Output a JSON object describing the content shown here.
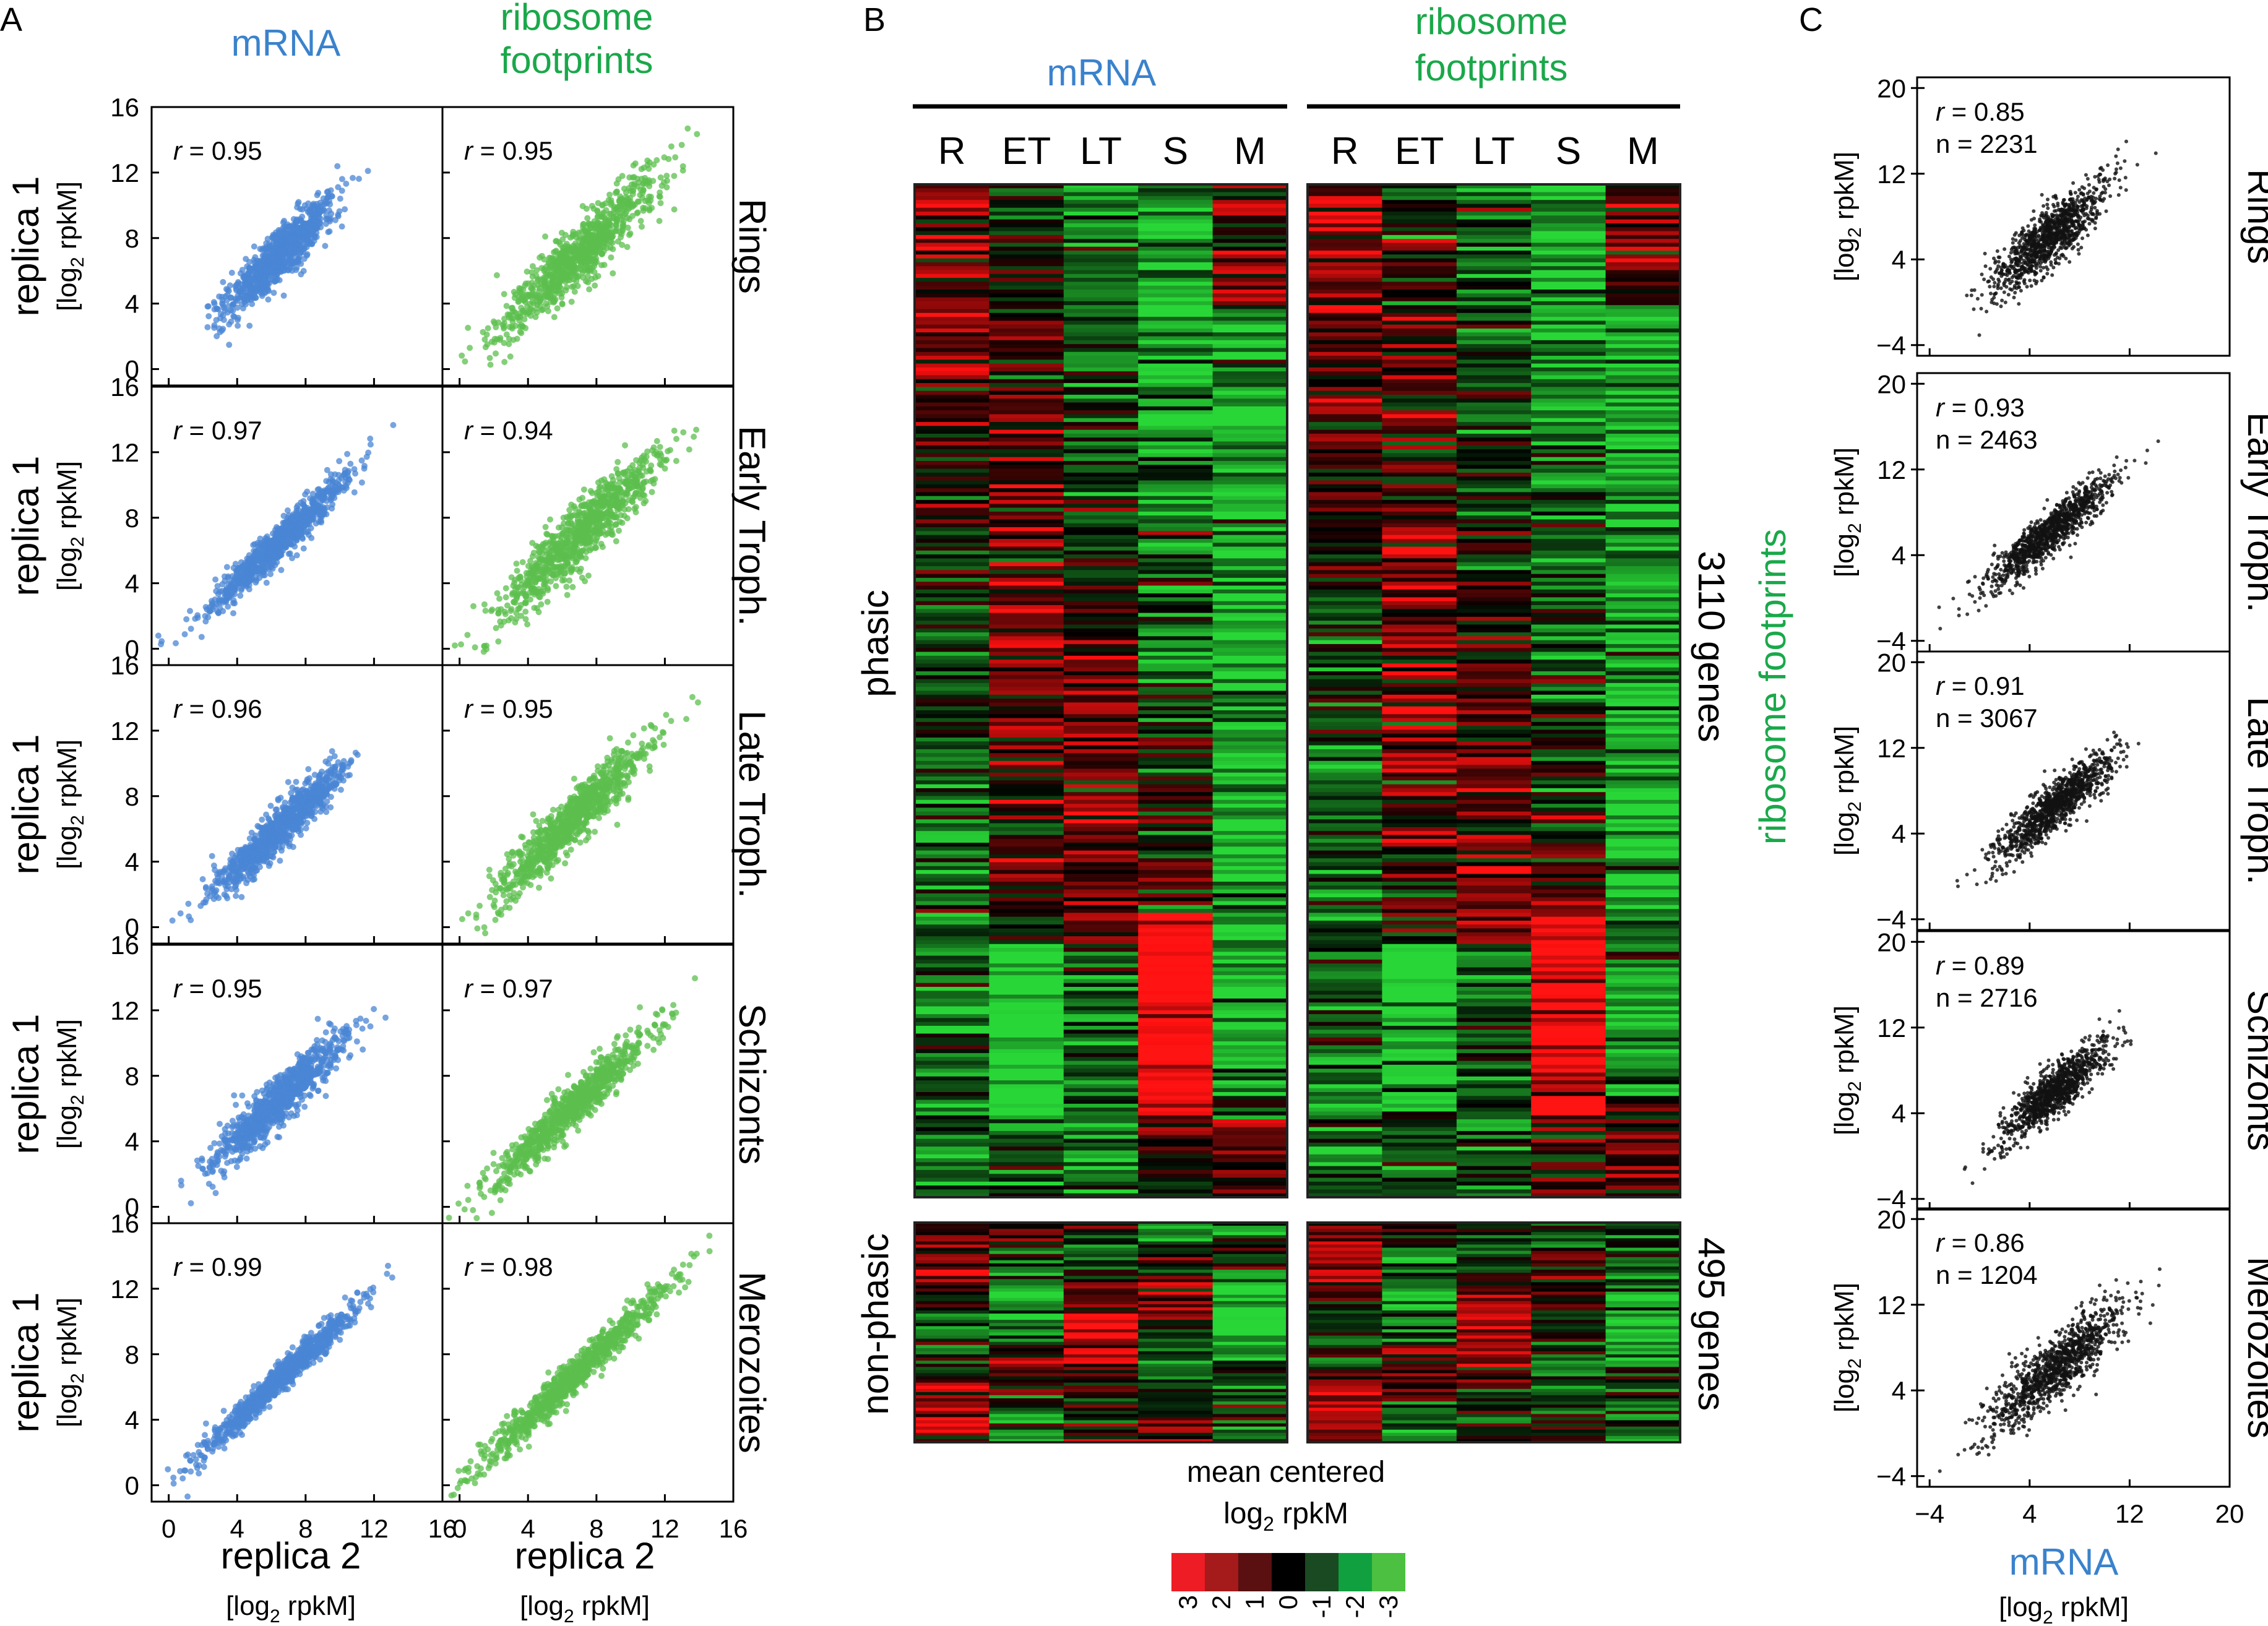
{
  "panel_labels": {
    "a": "A",
    "b": "B",
    "c": "C"
  },
  "colors": {
    "mrna_blue": "#3a82cc",
    "footprint_green": "#1aa84a",
    "green_points": "#5cbf4e",
    "blue_points": "#4a86d4",
    "heat_pos": "#ff1a1a",
    "heat_neg": "#4cd24c",
    "black": "#000000"
  },
  "panel_a": {
    "col_titles": {
      "mrna": "mRNA",
      "ribo_line1": "ribosome",
      "ribo_line2": "footprints"
    },
    "ylabel_line1": "replica 1",
    "ylabel_line2": "[log",
    "ylabel_sub": "2",
    "ylabel_line2_end": " rpkM]",
    "xlabel_line1": "replica 2",
    "xlabel_line2": "[log",
    "xlabel_sub": "2",
    "xlabel_line2_end": " rpkM]",
    "row_labels": [
      "Rings",
      "Early Troph.",
      "Late Troph.",
      "Schizonts",
      "Merozoites"
    ],
    "ticks": [
      "0",
      "4",
      "8",
      "12",
      "16"
    ]
  },
  "panel_b": {
    "mrna_title": "mRNA",
    "ribo_title_line1": "ribosome",
    "ribo_title_line2": "footprints",
    "stage_labels": [
      "R",
      "ET",
      "LT",
      "S",
      "M"
    ],
    "phasic_label": "phasic",
    "nonphasic_label": "non-phasic",
    "phasic_count": "3110 genes",
    "nonphasic_count": "495 genes",
    "scale_title_line1": "mean centered",
    "scale_title_line2": "log",
    "scale_title_sub": "2",
    "scale_title_end": " rpkM",
    "scale_ticks": [
      "3",
      "2",
      "1",
      "0",
      "-1",
      "-2",
      "-3"
    ],
    "scale_colors": [
      "#ee1c24",
      "#a51a1a",
      "#5a1010",
      "#000000",
      "#1a4a22",
      "#10a040",
      "#4cc040"
    ]
  },
  "panel_c": {
    "ylabel_vertical": "ribosome footprints",
    "ylabel_small": "[log",
    "ylabel_sub": "2",
    "ylabel_end": " rpkM]",
    "xlabel_line1": "mRNA",
    "xlabel_line2": "[log",
    "xlabel_sub": "2",
    "xlabel_end": " rpkM]",
    "row_labels": [
      "Rings",
      "Early Troph.",
      "Late Troph.",
      "Schizonts",
      "Merozoites"
    ],
    "yticks": [
      "20",
      "12",
      "4",
      "−4"
    ],
    "xticks": [
      "−4",
      "4",
      "12",
      "20"
    ]
  },
  "chart_data": [
    {
      "type": "scatter",
      "title": "",
      "xlabel": "replica 2 [log2 rpkM]",
      "ylabel": "replica 1 [log2 rpkM]",
      "xlim": [
        -1,
        16
      ],
      "ylim": [
        -1,
        16
      ],
      "panels": [
        {
          "stage": "Rings",
          "series": "mRNA",
          "r": "r = 0.95",
          "center": [
            6.5,
            7.0
          ],
          "spread": 1.6,
          "noise": 0.7
        },
        {
          "stage": "Rings",
          "series": "ribosome footprints",
          "r": "r = 0.95",
          "center": [
            7.0,
            7.0
          ],
          "spread": 2.4,
          "noise": 0.9
        },
        {
          "stage": "Early Troph.",
          "series": "mRNA",
          "r": "r = 0.97",
          "center": [
            6.5,
            6.5
          ],
          "spread": 2.0,
          "noise": 0.5
        },
        {
          "stage": "Early Troph.",
          "series": "ribosome footprints",
          "r": "r = 0.94",
          "center": [
            7.0,
            7.0
          ],
          "spread": 2.3,
          "noise": 0.9
        },
        {
          "stage": "Late Troph.",
          "series": "mRNA",
          "r": "r = 0.96",
          "center": [
            6.5,
            6.0
          ],
          "spread": 1.9,
          "noise": 0.6
        },
        {
          "stage": "Late Troph.",
          "series": "ribosome footprints",
          "r": "r = 0.95",
          "center": [
            6.5,
            6.5
          ],
          "spread": 2.2,
          "noise": 0.8
        },
        {
          "stage": "Schizonts",
          "series": "mRNA",
          "r": "r = 0.95",
          "center": [
            6.5,
            6.5
          ],
          "spread": 1.9,
          "noise": 0.7
        },
        {
          "stage": "Schizonts",
          "series": "ribosome footprints",
          "r": "r = 0.97",
          "center": [
            6.5,
            6.0
          ],
          "spread": 2.3,
          "noise": 0.6
        },
        {
          "stage": "Merozoites",
          "series": "mRNA",
          "r": "r = 0.99",
          "center": [
            6.5,
            6.5
          ],
          "spread": 2.3,
          "noise": 0.35
        },
        {
          "stage": "Merozoites",
          "series": "ribosome footprints",
          "r": "r = 0.98",
          "center": [
            6.5,
            6.5
          ],
          "spread": 2.8,
          "noise": 0.5
        }
      ]
    },
    {
      "type": "heatmap",
      "title": "",
      "columns": [
        "R",
        "ET",
        "LT",
        "S",
        "M"
      ],
      "blocks": [
        {
          "name": "mRNA",
          "group": "phasic",
          "genes": 3110
        },
        {
          "name": "ribosome footprints",
          "group": "phasic",
          "genes": 3110
        },
        {
          "name": "mRNA",
          "group": "non-phasic",
          "genes": 495
        },
        {
          "name": "ribosome footprints",
          "group": "non-phasic",
          "genes": 495
        }
      ],
      "color_scale": {
        "min": -3,
        "max": 3,
        "label": "mean centered log2 rpkM"
      }
    },
    {
      "type": "scatter",
      "title": "",
      "xlabel": "mRNA [log2 rpkM]",
      "ylabel": "ribosome footprints [log2 rpkM]",
      "xlim": [
        -5,
        20
      ],
      "ylim": [
        -5,
        21
      ],
      "panels": [
        {
          "stage": "Rings",
          "r": "r = 0.85",
          "n": "n = 2231",
          "center": [
            5.5,
            6.0
          ],
          "spread": 2.2,
          "noise": 1.3
        },
        {
          "stage": "Early Troph.",
          "r": "r = 0.93",
          "n": "n = 2463",
          "center": [
            5.5,
            6.0
          ],
          "spread": 2.4,
          "noise": 0.9
        },
        {
          "stage": "Late Troph.",
          "r": "r = 0.91",
          "n": "n = 3067",
          "center": [
            6.0,
            6.5
          ],
          "spread": 2.3,
          "noise": 1.0
        },
        {
          "stage": "Schizonts",
          "r": "r = 0.89",
          "n": "n = 2716",
          "center": [
            6.0,
            6.0
          ],
          "spread": 2.0,
          "noise": 1.0
        },
        {
          "stage": "Merozoites",
          "r": "r = 0.86",
          "n": "n = 1204",
          "center": [
            6.0,
            6.0
          ],
          "spread": 2.6,
          "noise": 1.4
        }
      ]
    }
  ]
}
